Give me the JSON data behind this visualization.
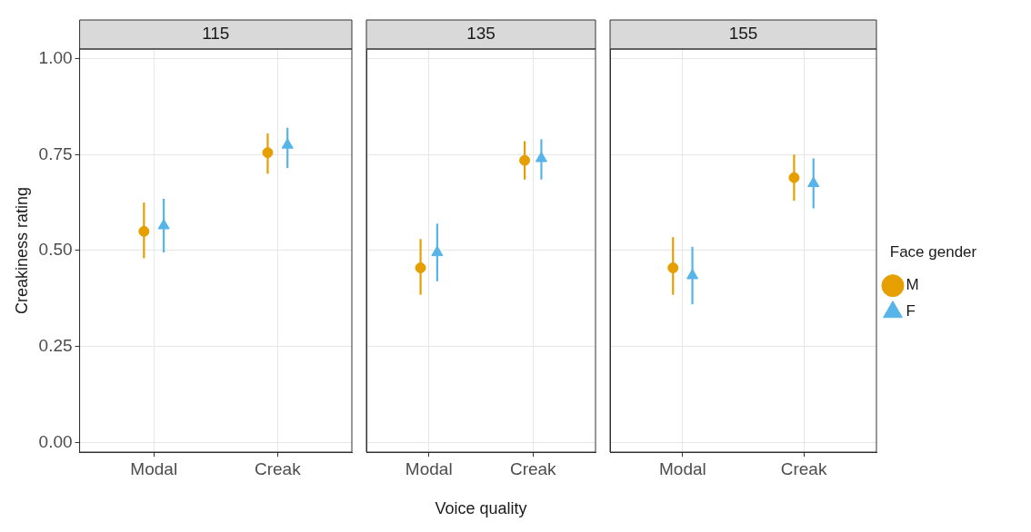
{
  "chart_data": [
    {
      "type": "scatter",
      "title": "115",
      "ylabel": "Creakiness rating",
      "categories": [
        "Modal",
        "Creak"
      ],
      "ylim": [
        -0.025,
        1.025
      ],
      "yticks": [
        {
          "value": 0,
          "label": "0.00"
        },
        {
          "value": 0.25,
          "label": "0.25"
        },
        {
          "value": 0.5,
          "label": "0.50"
        },
        {
          "value": 0.75,
          "label": "0.75"
        },
        {
          "value": 1,
          "label": "1.00"
        }
      ],
      "grid": true,
      "legend": false,
      "series": [
        {
          "color": "#e69f00",
          "marker": "circle",
          "values": [
            0.55,
            0.755
          ],
          "errors": [
            [
              0.48,
              0.625
            ],
            [
              0.7,
              0.805
            ]
          ]
        },
        {
          "color": "#56b4e9",
          "marker": "triangle",
          "values": [
            0.565,
            0.775
          ],
          "errors": [
            [
              0.495,
              0.635
            ],
            [
              0.715,
              0.82
            ]
          ]
        }
      ]
    },
    {
      "type": "scatter",
      "title": "135",
      "xlabel": "Voice quality",
      "categories": [
        "Modal",
        "Creak"
      ],
      "ylim": [
        -0.025,
        1.025
      ],
      "yticks": [
        0,
        0.25,
        0.5,
        0.75,
        1
      ],
      "grid": true,
      "legend": false,
      "tick_labels": "x",
      "series": [
        {
          "color": "#e69f00",
          "marker": "circle",
          "values": [
            0.455,
            0.735
          ],
          "errors": [
            [
              0.385,
              0.53
            ],
            [
              0.685,
              0.785
            ]
          ]
        },
        {
          "color": "#56b4e9",
          "marker": "triangle",
          "values": [
            0.495,
            0.74
          ],
          "errors": [
            [
              0.42,
              0.57
            ],
            [
              0.685,
              0.79
            ]
          ]
        }
      ]
    },
    {
      "type": "scatter",
      "title": "155",
      "legend_title": "Face gender",
      "categories": [
        "Modal",
        "Creak"
      ],
      "ylim": [
        -0.025,
        1.025
      ],
      "yticks": [
        0,
        0.25,
        0.5,
        0.75,
        1
      ],
      "grid": true,
      "legend": "right",
      "tick_labels": "x",
      "series": [
        {
          "name": "M",
          "color": "#e69f00",
          "marker": "circle",
          "values": [
            0.455,
            0.69
          ],
          "errors": [
            [
              0.385,
              0.535
            ],
            [
              0.63,
              0.75
            ]
          ]
        },
        {
          "name": "F",
          "color": "#56b4e9",
          "marker": "triangle",
          "values": [
            0.435,
            0.675
          ],
          "errors": [
            [
              0.36,
              0.51
            ],
            [
              0.61,
              0.74
            ]
          ]
        }
      ]
    }
  ]
}
